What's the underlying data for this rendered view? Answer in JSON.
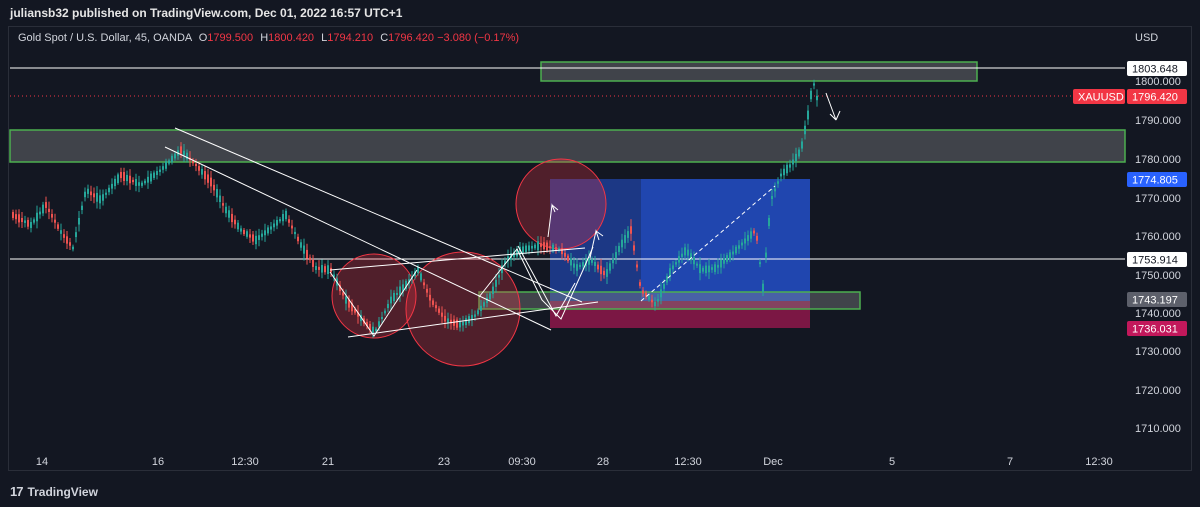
{
  "header": {
    "published_line": "juliansb32 published on TradingView.com, Dec 01, 2022 16:57 UTC+1"
  },
  "legend": {
    "symbol": "Gold Spot / U.S. Dollar, 45, OANDA",
    "open_label": "O",
    "open": "1799.500",
    "high_label": "H",
    "high": "1800.420",
    "low_label": "L",
    "low": "1794.210",
    "close_label": "C",
    "close": "1796.420",
    "change": "−3.080 (−0.17%)"
  },
  "price_axis": {
    "currency": "USD",
    "ticks": [
      "1800.000",
      "1790.000",
      "1780.000",
      "1770.000",
      "1760.000",
      "1750.000",
      "1740.000",
      "1730.000",
      "1720.000",
      "1710.000"
    ],
    "tags": [
      {
        "text": "1803.648",
        "bg": "#ffffff",
        "fg": "#131722"
      },
      {
        "text": "XAUUSD",
        "bg": "#f23645",
        "fg": "#ffffff"
      },
      {
        "text": "1796.420",
        "bg": "#f23645",
        "fg": "#ffffff"
      },
      {
        "text": "1774.805",
        "bg": "#2962ff",
        "fg": "#ffffff"
      },
      {
        "text": "1753.914",
        "bg": "#ffffff",
        "fg": "#131722"
      },
      {
        "text": "1743.197",
        "bg": "#5d606b",
        "fg": "#ffffff"
      },
      {
        "text": "1736.031",
        "bg": "#c2185b",
        "fg": "#ffffff"
      }
    ]
  },
  "time_axis": {
    "ticks": [
      "14",
      "16",
      "12:30",
      "21",
      "23",
      "09:30",
      "28",
      "12:30",
      "Dec",
      "5",
      "7",
      "12:30"
    ]
  },
  "footer": {
    "logo": "17",
    "brand": "TradingView"
  },
  "colors": {
    "background": "#131722",
    "up": "#26a69a",
    "down": "#ef5350",
    "zone_border": "#4caf50",
    "long_target": "#2962ff",
    "stop": "#c2185b"
  }
}
